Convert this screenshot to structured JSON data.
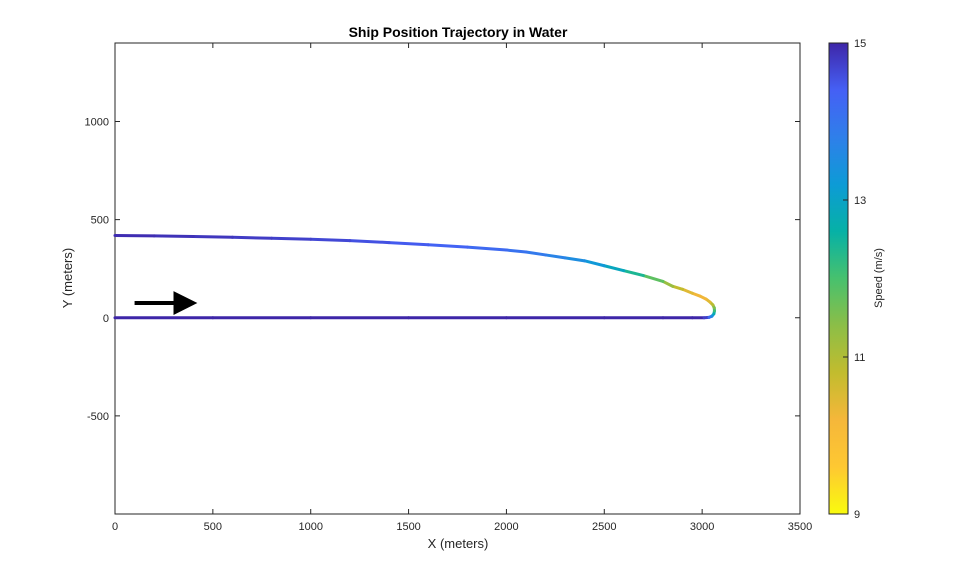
{
  "chart_data": {
    "type": "line",
    "title": "Ship Position Trajectory in Water",
    "xlabel": "X (meters)",
    "ylabel": "Y (meters)",
    "xlim": [
      0,
      3500
    ],
    "ylim": [
      -1000,
      1400
    ],
    "xticks": [
      0,
      500,
      1000,
      1500,
      2000,
      2500,
      3000,
      3500
    ],
    "yticks": [
      -500,
      0,
      500,
      1000
    ],
    "grid": false,
    "series": [
      {
        "x": [
          0,
          500,
          1000,
          1500,
          2000,
          2500,
          2800,
          2950,
          3010,
          3035,
          3050,
          3060,
          3063,
          3062,
          3055,
          3040,
          3020,
          2990,
          2950,
          2900,
          2850,
          2800,
          2700,
          2600,
          2500,
          2400,
          2300,
          2200,
          2100,
          2000,
          1800,
          1600,
          1400,
          1200,
          1000,
          800,
          600,
          400,
          200,
          0
        ],
        "y": [
          0,
          0,
          0,
          0,
          0,
          0,
          0,
          0,
          0,
          2,
          8,
          20,
          35,
          50,
          65,
          80,
          95,
          110,
          125,
          145,
          160,
          185,
          215,
          240,
          265,
          290,
          305,
          320,
          335,
          345,
          360,
          372,
          383,
          393,
          400,
          405,
          410,
          414,
          417,
          419
        ],
        "speed": [
          15,
          15,
          15,
          15,
          15,
          15,
          15,
          15,
          15,
          14.5,
          13.8,
          13,
          12.4,
          11.8,
          11.2,
          10.6,
          10.3,
          10.2,
          10.3,
          10.6,
          11,
          11.5,
          12.1,
          12.7,
          13.1,
          13.4,
          13.6,
          13.8,
          14,
          14.1,
          14.3,
          14.4,
          14.5,
          14.6,
          14.7,
          14.75,
          14.8,
          14.85,
          14.9,
          14.95
        ]
      }
    ],
    "colorbar": {
      "label": "Speed  (m/s)",
      "min": 9,
      "max": 15,
      "ticks": [
        9,
        11,
        13,
        15
      ],
      "colormap": "parula"
    },
    "annotation": {
      "type": "arrow",
      "from": [
        100,
        75
      ],
      "to": [
        380,
        75
      ],
      "color": "#000000"
    }
  }
}
